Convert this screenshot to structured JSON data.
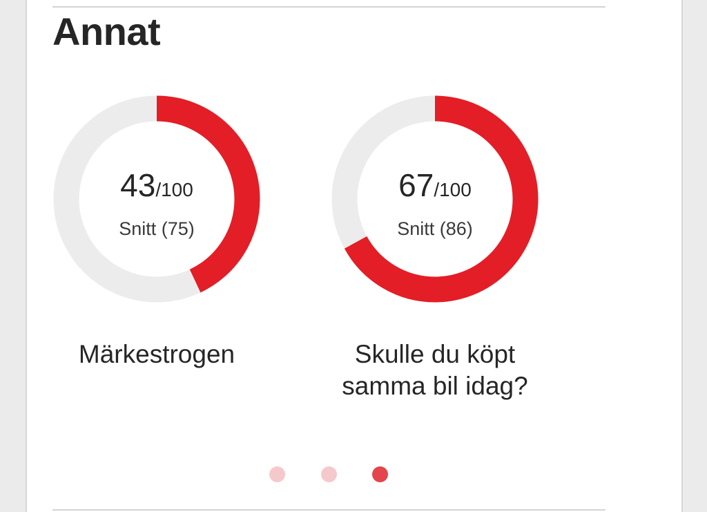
{
  "section": {
    "title": "Annat"
  },
  "gauges": [
    {
      "score": "43",
      "max": "/100",
      "avg_label": "Snitt (75)",
      "caption": "Märkestrogen",
      "fraction": 0.43
    },
    {
      "score": "67",
      "max": "/100",
      "avg_label": "Snitt (86)",
      "caption": "Skulle du köpt samma bil idag?",
      "fraction": 0.67
    }
  ],
  "carousel": {
    "page_count": 3,
    "active_index": 2
  },
  "colors": {
    "accent": "#e31e26",
    "track": "#ececec",
    "dot_inactive": "#f5c9cb",
    "dot_active": "#e4444b"
  }
}
